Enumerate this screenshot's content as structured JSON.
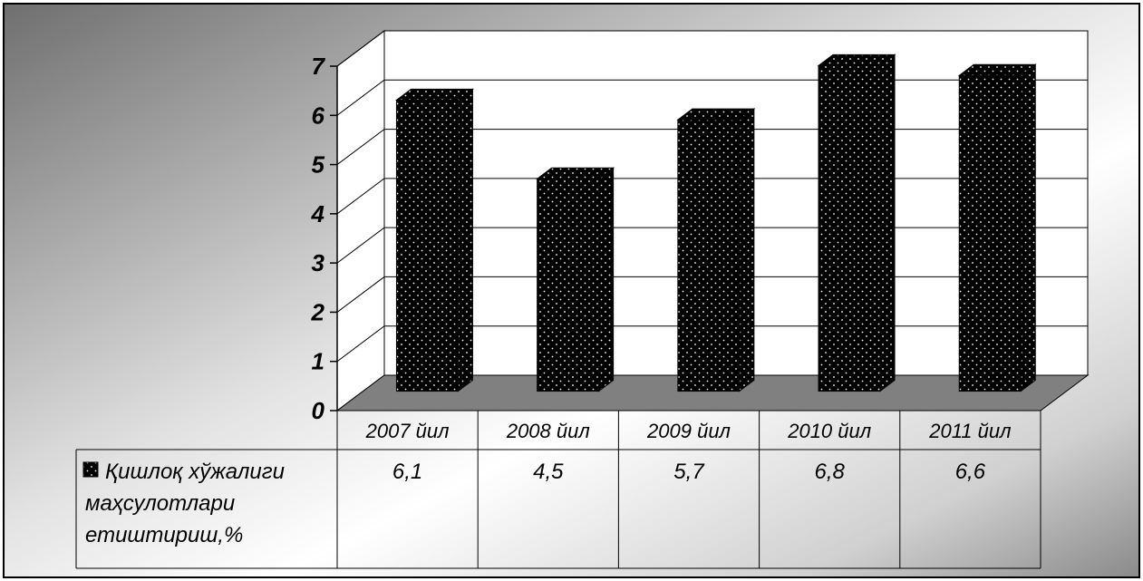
{
  "chart_data": {
    "type": "bar",
    "categories": [
      "2007 йил",
      "2008 йил",
      "2009 йил",
      "2010 йил",
      "2011 йил"
    ],
    "series": [
      {
        "name": "Қишлоқ хўжалиги маҳсулотлари етиштириш,%",
        "name_lines": [
          "Қишлоқ хўжалиги",
          "маҳсулотлари",
          "етиштириш,%"
        ],
        "values": [
          6.1,
          4.5,
          5.7,
          6.8,
          6.6
        ],
        "value_labels": [
          "6,1",
          "4,5",
          "5,7",
          "6,8",
          "6,6"
        ]
      }
    ],
    "ylim": [
      0,
      7
    ],
    "yticks": [
      0,
      1,
      2,
      3,
      4,
      5,
      6,
      7
    ],
    "grid": true,
    "three_d": true,
    "legend_placement": "data-table",
    "colors": {
      "bar": "#000000",
      "bar_pattern_dot": "#ffffff",
      "floor": "#808080",
      "wall": "#ffffff",
      "grid": "#000000"
    }
  }
}
